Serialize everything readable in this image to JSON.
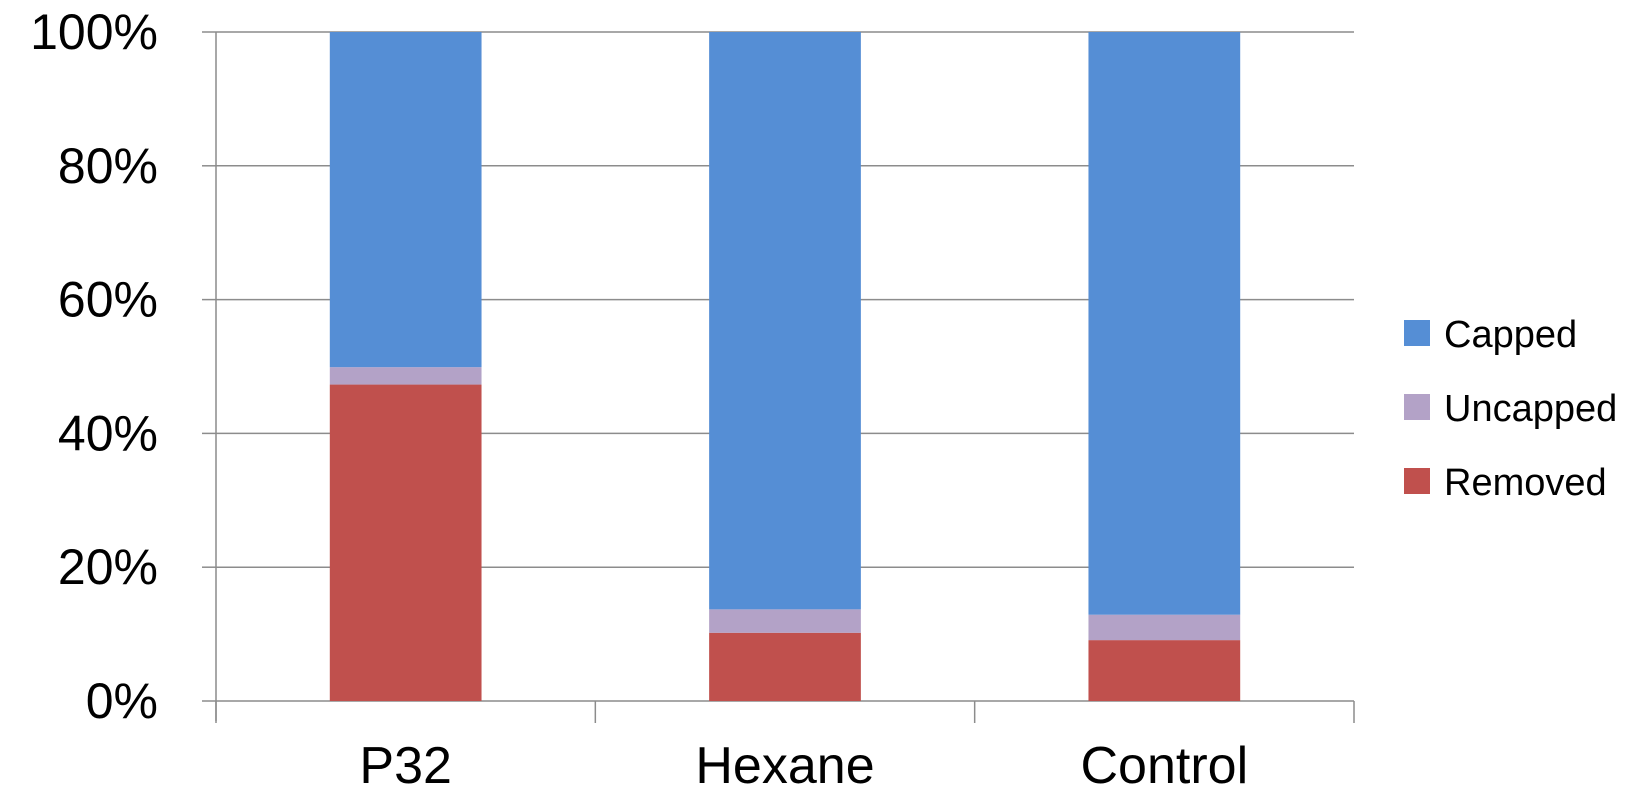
{
  "chart_data": {
    "type": "bar",
    "stacked": true,
    "normalized": true,
    "categories": [
      "P32",
      "Hexane",
      "Control"
    ],
    "series": [
      {
        "name": "Removed",
        "color": "#c0504d",
        "values": [
          47.3,
          10.2,
          9.1
        ]
      },
      {
        "name": "Uncapped",
        "color": "#b3a2c7",
        "values": [
          2.6,
          3.5,
          3.8
        ]
      },
      {
        "name": "Capped",
        "color": "#558ed5",
        "values": [
          50.1,
          86.3,
          87.1
        ]
      }
    ],
    "ylim": [
      0,
      100
    ],
    "yticks": [
      "0%",
      "20%",
      "40%",
      "60%",
      "80%",
      "100%"
    ],
    "grid": true,
    "legend": {
      "position": "right",
      "order": [
        "Capped",
        "Uncapped",
        "Removed"
      ]
    }
  }
}
